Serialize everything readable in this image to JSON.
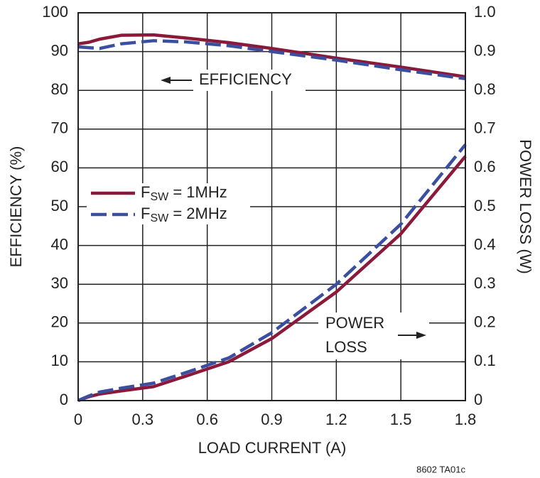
{
  "chart_data": {
    "type": "line",
    "xlabel": "LOAD CURRENT (A)",
    "ylabel": "EFFICIENCY (%)",
    "y2label": "POWER LOSS (W)",
    "annotations": {
      "efficiency": "EFFICIENCY",
      "power": "POWER",
      "loss": "LOSS",
      "code": "8602 TA01c"
    },
    "x": [
      0,
      0.05,
      0.1,
      0.2,
      0.35,
      0.5,
      0.7,
      0.9,
      1.2,
      1.5,
      1.8
    ],
    "series": [
      {
        "name": "FSW = 1MHz",
        "color": "#8b1a3a",
        "dashed": false,
        "values": [
          92,
          92.4,
          93.2,
          94.2,
          94.3,
          93.5,
          92.3,
          90.8,
          88.3,
          86,
          83.5
        ],
        "y2_values": [
          0,
          0.01,
          0.017,
          0.025,
          0.036,
          0.063,
          0.1,
          0.16,
          0.28,
          0.43,
          0.63
        ]
      },
      {
        "name": "FSW = 2MHz",
        "color": "#3a4fa0",
        "dashed": true,
        "values": [
          91.2,
          91,
          90.8,
          92,
          92.8,
          92.5,
          91.5,
          90,
          87.8,
          85.3,
          83
        ],
        "y2_values": [
          0,
          0.012,
          0.022,
          0.032,
          0.045,
          0.072,
          0.11,
          0.175,
          0.3,
          0.455,
          0.66
        ]
      }
    ],
    "xlim": [
      0,
      1.8
    ],
    "xticks": [
      0,
      0.3,
      0.6,
      0.9,
      1.2,
      1.5,
      1.8
    ],
    "ylim": [
      0,
      100
    ],
    "yticks": [
      0,
      10,
      20,
      30,
      40,
      50,
      60,
      70,
      80,
      90,
      100
    ],
    "y2lim": [
      0,
      1
    ],
    "y2ticks": [
      0,
      0.1,
      0.2,
      0.3,
      0.4,
      0.5,
      0.6,
      0.7,
      0.8,
      0.9,
      {
        "value": 1,
        "label": "1.0"
      }
    ],
    "grid": true
  }
}
